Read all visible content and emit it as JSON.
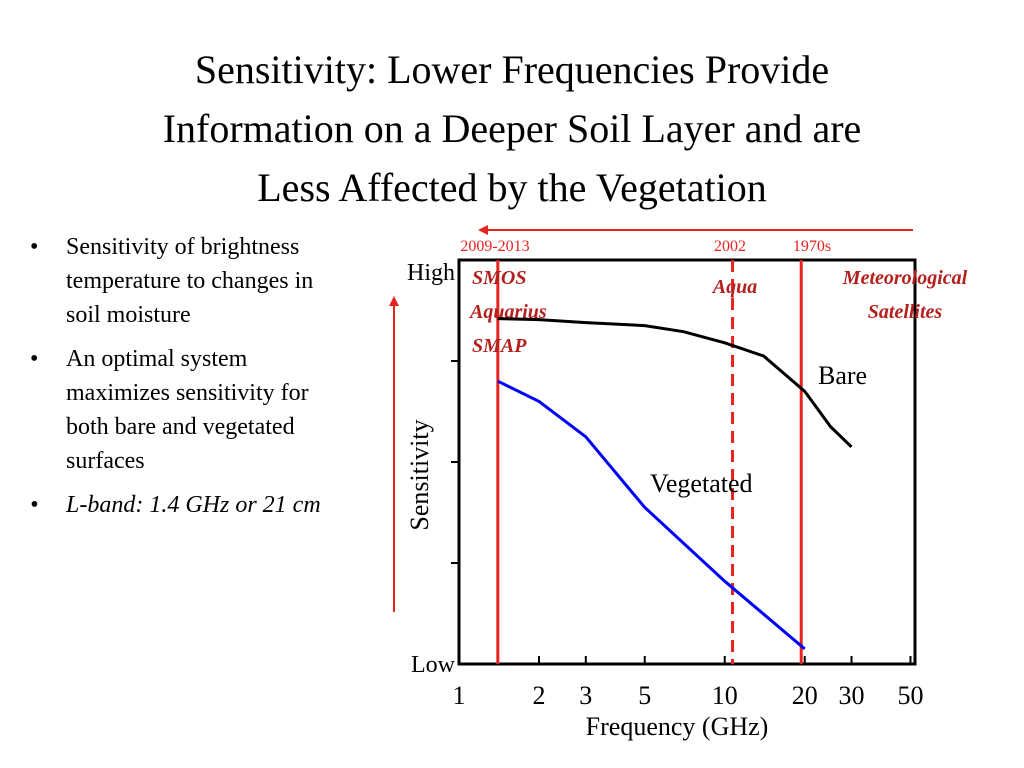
{
  "slide": {
    "title_lines": [
      "Sensitivity: Lower Frequencies Provide",
      "Information on a Deeper Soil Layer and are",
      "Less Affected by the Vegetation"
    ],
    "bullets": [
      {
        "text": "Sensitivity of brightness temperature to changes in soil moisture",
        "italic": false
      },
      {
        "text": "An optimal system maximizes sensitivity for both bare and vegetated surfaces",
        "italic": false
      },
      {
        "text": "L-band: 1.4 GHz or 21 cm",
        "italic": true
      }
    ]
  },
  "chart_data": {
    "type": "line",
    "xscale": "log",
    "xlim": [
      1,
      52
    ],
    "ylim": [
      0,
      4
    ],
    "xlabel": "Frequency (GHz)",
    "ylabel": "Sensitivity",
    "xticks": [
      1,
      2,
      3,
      5,
      10,
      20,
      30,
      50
    ],
    "xticklabels": [
      "1",
      "2",
      "3",
      "5",
      "10",
      "20",
      "30",
      "50"
    ],
    "yticks": [
      1,
      2,
      3
    ],
    "yticklabels": {
      "high": "High",
      "low": "Low"
    },
    "series": [
      {
        "name": "Bare",
        "color": "#000000",
        "x": [
          1.4,
          2,
          3,
          5,
          7,
          10,
          14,
          20,
          25,
          30
        ],
        "y": [
          3.42,
          3.41,
          3.38,
          3.35,
          3.29,
          3.18,
          3.05,
          2.7,
          2.35,
          2.15
        ]
      },
      {
        "name": "Vegetated",
        "color": "#0000ff",
        "x": [
          1.4,
          2,
          3,
          5,
          10,
          20
        ],
        "y": [
          2.8,
          2.6,
          2.25,
          1.55,
          0.82,
          0.15
        ]
      }
    ],
    "markers": [
      {
        "x": 1.4,
        "style": "solid",
        "era": "2009-2013",
        "missions": [
          "SMOS",
          "Aquarius",
          "SMAP"
        ]
      },
      {
        "x": 10.7,
        "style": "dashed",
        "era": "2002",
        "missions": [
          "Aqua"
        ]
      },
      {
        "x": 19.4,
        "style": "solid",
        "era": "1970s",
        "missions": [
          "Meteorological Satellites"
        ]
      }
    ],
    "accent_color": "#e8221d",
    "mission_label_color": "#b3201d"
  }
}
